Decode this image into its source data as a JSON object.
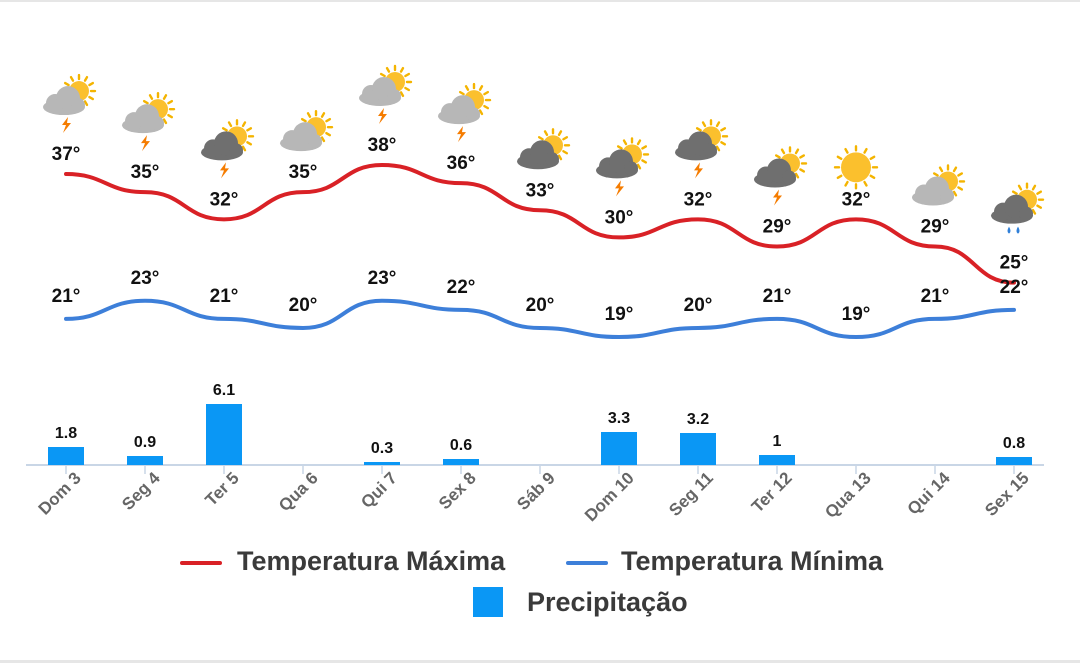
{
  "chart_data": {
    "type": "line+bar",
    "categories": [
      "Dom 3",
      "Seg 4",
      "Ter 5",
      "Qua 6",
      "Qui 7",
      "Sex 8",
      "Sáb 9",
      "Dom 10",
      "Seg 11",
      "Ter 12",
      "Qua 13",
      "Qui 14",
      "Sex 15"
    ],
    "series": [
      {
        "name": "Temperatura Máxima",
        "kind": "line",
        "color": "#d92126",
        "values": [
          37,
          35,
          32,
          35,
          38,
          36,
          33,
          30,
          32,
          29,
          32,
          29,
          25
        ],
        "labels": [
          "37°",
          "35°",
          "32°",
          "35°",
          "38°",
          "36°",
          "33°",
          "30°",
          "32°",
          "29°",
          "32°",
          "29°",
          "25°"
        ]
      },
      {
        "name": "Temperatura Mínima",
        "kind": "line",
        "color": "#3d7fd9",
        "values": [
          21,
          23,
          21,
          20,
          23,
          22,
          20,
          19,
          20,
          21,
          19,
          21,
          22
        ],
        "labels": [
          "21°",
          "23°",
          "21°",
          "20°",
          "23°",
          "22°",
          "20°",
          "19°",
          "20°",
          "21°",
          "19°",
          "21°",
          "22°"
        ]
      },
      {
        "name": "Precipitação",
        "kind": "bar",
        "color": "#0a97f5",
        "values": [
          1.8,
          0.9,
          6.1,
          0,
          0.3,
          0.6,
          0,
          3.3,
          3.2,
          1,
          0,
          0,
          0.8
        ],
        "labels": [
          "1.8",
          "0.9",
          "6.1",
          "",
          "0.3",
          "0.6",
          "",
          "3.3",
          "3.2",
          "1",
          "",
          "",
          "0.8"
        ]
      }
    ],
    "icons": [
      "sun-cloud-thunder-icon",
      "sun-cloud-thunder-icon",
      "sun-cloud-thunder-icon",
      "sun-cloud-icon",
      "sun-cloud-thunder-icon",
      "sun-cloud-thunder-icon",
      "sun-cloud-icon",
      "sun-cloud-thunder-icon",
      "sun-cloud-thunder-icon",
      "sun-cloud-thunder-icon",
      "sun-icon",
      "sun-cloud-icon",
      "sun-cloud-rain-icon"
    ],
    "icon_variants": [
      "light",
      "light",
      "dark",
      "light",
      "light",
      "light",
      "dark",
      "dark",
      "dark",
      "dark",
      "",
      "light",
      "dark"
    ],
    "legend": {
      "max_label": "Temperatura Máxima",
      "min_label": "Temperatura Mínima",
      "precip_label": "Precipitação"
    },
    "legend_position": "bottom",
    "grid": false
  }
}
